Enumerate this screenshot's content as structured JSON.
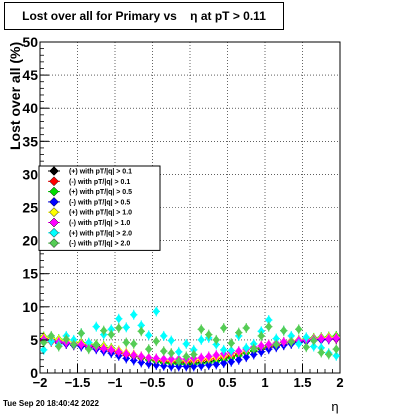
{
  "chart_data": {
    "type": "scatter",
    "title": "Lost over all for Primary vs    η at pT > 0.11",
    "ylabel": "Lost over all (%)",
    "xlabel": "η",
    "xlim": [
      -2,
      2
    ],
    "ylim": [
      0,
      50
    ],
    "grid": true,
    "legend_position": "left-middle",
    "x_ticks": [
      -2,
      -1.5,
      -1,
      -0.5,
      0,
      0.5,
      1,
      1.5,
      2
    ],
    "x_tick_labels": [
      "−2",
      "−1.5",
      "−1",
      "−0.5",
      "0",
      "0.5",
      "1",
      "1.5",
      "2"
    ],
    "y_ticks": [
      0,
      5,
      10,
      15,
      20,
      25,
      30,
      35,
      40,
      45,
      50
    ],
    "y_tick_labels": [
      "0",
      "5",
      "10",
      "15",
      "20",
      "25",
      "30",
      "35",
      "40",
      "45",
      "50"
    ],
    "x": [
      -1.95,
      -1.85,
      -1.75,
      -1.65,
      -1.55,
      -1.45,
      -1.35,
      -1.25,
      -1.15,
      -1.05,
      -0.95,
      -0.85,
      -0.75,
      -0.65,
      -0.55,
      -0.45,
      -0.35,
      -0.25,
      -0.15,
      -0.05,
      0.05,
      0.15,
      0.25,
      0.35,
      0.45,
      0.55,
      0.65,
      0.75,
      0.85,
      0.95,
      1.05,
      1.15,
      1.25,
      1.35,
      1.45,
      1.55,
      1.65,
      1.75,
      1.85,
      1.95
    ],
    "series": [
      {
        "name": "(+) with pT/|q| > 0.1",
        "color": "#000000",
        "values": [
          5.2,
          5.0,
          4.8,
          4.6,
          4.4,
          4.3,
          4.2,
          4.0,
          3.8,
          3.5,
          3.2,
          2.9,
          2.6,
          2.3,
          2.0,
          1.8,
          1.6,
          1.5,
          1.5,
          1.5,
          1.5,
          1.6,
          1.7,
          1.9,
          2.1,
          2.4,
          2.7,
          3.0,
          3.3,
          3.6,
          3.9,
          4.1,
          4.3,
          4.5,
          4.7,
          4.9,
          5.0,
          5.1,
          5.2,
          5.3
        ]
      },
      {
        "name": "(-) with pT/|q| > 0.1",
        "color": "#ff0000",
        "values": [
          4.9,
          4.7,
          4.5,
          4.4,
          4.2,
          4.1,
          4.0,
          3.8,
          3.6,
          3.3,
          3.0,
          2.7,
          2.5,
          2.2,
          2.0,
          1.9,
          1.8,
          1.7,
          1.7,
          1.7,
          1.8,
          1.9,
          2.0,
          2.2,
          2.4,
          2.6,
          2.9,
          3.1,
          3.4,
          3.7,
          3.9,
          4.1,
          4.3,
          4.5,
          4.6,
          4.8,
          4.9,
          5.0,
          5.1,
          5.1
        ]
      },
      {
        "name": "(+) with pT/|q| > 0.5",
        "color": "#00dd00",
        "values": [
          5.5,
          5.3,
          5.1,
          4.9,
          4.7,
          4.6,
          4.5,
          4.3,
          4.1,
          3.8,
          3.4,
          3.0,
          2.6,
          2.3,
          2.0,
          1.7,
          1.5,
          1.4,
          1.3,
          1.3,
          1.3,
          1.4,
          1.5,
          1.7,
          1.9,
          2.2,
          2.6,
          3.0,
          3.4,
          3.8,
          4.1,
          4.4,
          4.6,
          4.8,
          5.0,
          5.2,
          5.3,
          5.4,
          5.5,
          5.6
        ]
      },
      {
        "name": "(-) with pT/|q| > 0.5",
        "color": "#0000ff",
        "values": [
          5.0,
          4.8,
          4.6,
          4.4,
          4.2,
          4.0,
          3.8,
          3.6,
          3.3,
          3.0,
          2.6,
          2.2,
          1.9,
          1.6,
          1.4,
          1.2,
          1.1,
          1.0,
          1.0,
          1.0,
          1.0,
          1.1,
          1.2,
          1.3,
          1.5,
          1.7,
          2.0,
          2.4,
          2.8,
          3.2,
          3.6,
          3.9,
          4.2,
          4.4,
          4.6,
          4.8,
          4.9,
          5.0,
          5.1,
          5.2
        ]
      },
      {
        "name": "(+) with pT/|q| > 1.0",
        "color": "#ffff00",
        "values": [
          5.4,
          5.2,
          5.0,
          4.9,
          4.7,
          4.5,
          4.4,
          4.2,
          4.0,
          3.7,
          3.4,
          3.1,
          2.8,
          2.5,
          2.3,
          2.1,
          2.0,
          1.9,
          1.9,
          1.9,
          2.0,
          2.1,
          2.2,
          2.4,
          2.6,
          2.9,
          3.2,
          3.5,
          3.8,
          4.1,
          4.3,
          4.5,
          4.7,
          4.9,
          5.0,
          5.1,
          5.2,
          5.3,
          5.4,
          5.4
        ]
      },
      {
        "name": "(-) with pT/|q| > 1.0",
        "color": "#ff00ff",
        "values": [
          5.1,
          4.9,
          4.7,
          4.6,
          4.4,
          4.3,
          4.1,
          3.9,
          3.7,
          3.5,
          3.2,
          2.9,
          2.7,
          2.5,
          2.3,
          2.2,
          2.1,
          2.1,
          2.1,
          2.1,
          2.2,
          2.3,
          2.5,
          2.7,
          2.9,
          3.1,
          3.3,
          3.6,
          3.9,
          4.1,
          4.3,
          4.5,
          4.7,
          4.8,
          4.9,
          5.0,
          5.1,
          5.2,
          5.2,
          5.3
        ]
      },
      {
        "name": "(+) with pT/|q| > 2.0",
        "color": "#00ffff",
        "values": [
          3.5,
          4.8,
          4.2,
          5.6,
          5.0,
          6.0,
          4.6,
          7.0,
          5.8,
          6.6,
          8.2,
          6.9,
          8.8,
          7.2,
          5.7,
          9.3,
          5.6,
          4.9,
          3.2,
          4.4,
          3.5,
          5.0,
          5.3,
          4.3,
          3.5,
          3.4,
          5.6,
          3.8,
          4.4,
          6.3,
          8.0,
          5.2,
          6.4,
          5.6,
          4.4,
          5.4,
          4.0,
          3.8,
          3.0,
          2.6
        ]
      },
      {
        "name": "(-) with pT/|q| > 2.0",
        "color": "#55cc55",
        "values": [
          4.6,
          5.6,
          4.0,
          5.1,
          4.3,
          6.0,
          3.6,
          4.2,
          6.4,
          5.8,
          6.8,
          4.6,
          4.4,
          6.3,
          3.6,
          4.8,
          3.3,
          3.0,
          1.8,
          2.5,
          2.8,
          6.6,
          5.8,
          5.0,
          6.8,
          4.5,
          6.1,
          6.8,
          3.7,
          5.6,
          7.0,
          4.3,
          6.4,
          4.7,
          6.6,
          3.9,
          4.9,
          3.1,
          2.8,
          3.6
        ]
      }
    ]
  },
  "footer_date": "Tue Sep 20 18:40:42 2022"
}
